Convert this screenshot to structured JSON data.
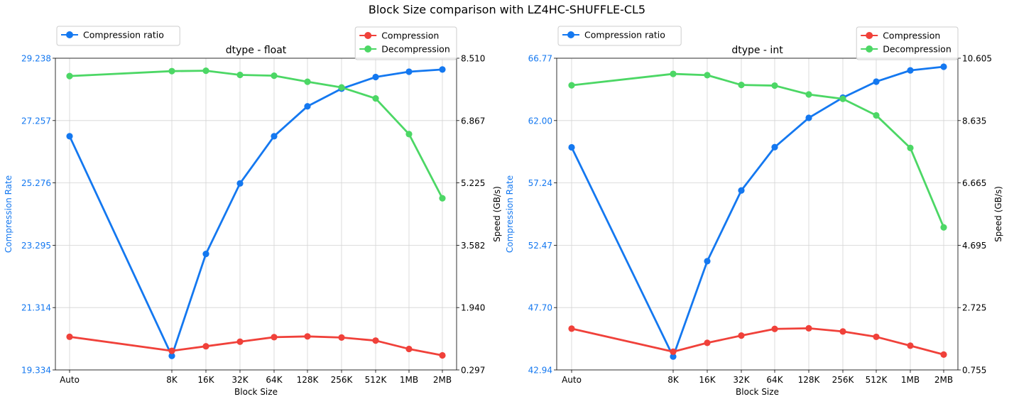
{
  "title": "Block Size comparison with LZ4HC-SHUFFLE-CL5",
  "colors": {
    "ratio": "#1478f0",
    "compression": "#f0413a",
    "decompression": "#4cd765",
    "ratio_axis": "#1478f0"
  },
  "chart_data": [
    {
      "type": "line",
      "title": "dtype - float",
      "xlabel": "Block Size",
      "ylabel_left": "Compression Rate",
      "ylabel_right": "Speed (GB/s)",
      "categories": [
        "Auto",
        "8K",
        "16K",
        "32K",
        "64K",
        "128K",
        "256K",
        "512K",
        "1MB",
        "2MB"
      ],
      "left_ticks": [
        "19.334",
        "21.314",
        "23.295",
        "25.276",
        "27.257",
        "29.238"
      ],
      "right_ticks": [
        "0.297",
        "1.940",
        "3.582",
        "5.225",
        "6.867",
        "8.510"
      ],
      "ylim_left": [
        19.334,
        29.238
      ],
      "ylim_right": [
        0.297,
        8.51
      ],
      "grid": true,
      "legend_left": [
        "Compression ratio"
      ],
      "legend_right": [
        "Compression",
        "Decompression"
      ],
      "series": [
        {
          "name": "Compression ratio",
          "axis": "left",
          "color": "ratio",
          "values": [
            26.76,
            19.78,
            23.02,
            25.26,
            26.76,
            27.71,
            28.27,
            28.64,
            28.81,
            28.88
          ]
        },
        {
          "name": "Compression",
          "axis": "right",
          "color": "compression",
          "values": [
            1.17,
            0.8,
            0.92,
            1.04,
            1.16,
            1.18,
            1.15,
            1.07,
            0.85,
            0.68
          ]
        },
        {
          "name": "Decompression",
          "axis": "right",
          "color": "decompression",
          "values": [
            8.04,
            8.17,
            8.18,
            8.07,
            8.05,
            7.89,
            7.74,
            7.45,
            6.51,
            4.82
          ]
        }
      ]
    },
    {
      "type": "line",
      "title": "dtype - int",
      "xlabel": "Block Size",
      "ylabel_left": "Compression Rate",
      "ylabel_right": "Speed (GB/s)",
      "categories": [
        "Auto",
        "8K",
        "16K",
        "32K",
        "64K",
        "128K",
        "256K",
        "512K",
        "1MB",
        "2MB"
      ],
      "left_ticks": [
        "42.94",
        "47.70",
        "52.47",
        "57.24",
        "62.00",
        "66.77"
      ],
      "right_ticks": [
        "0.755",
        "2.725",
        "4.695",
        "6.665",
        "8.635",
        "10.605"
      ],
      "ylim_left": [
        42.94,
        66.77
      ],
      "ylim_right": [
        0.755,
        10.605
      ],
      "grid": true,
      "legend_left": [
        "Compression ratio"
      ],
      "legend_right": [
        "Compression",
        "Decompression"
      ],
      "series": [
        {
          "name": "Compression ratio",
          "axis": "left",
          "color": "ratio",
          "values": [
            59.96,
            43.96,
            51.25,
            56.66,
            59.97,
            62.21,
            63.76,
            64.98,
            65.84,
            66.12
          ]
        },
        {
          "name": "Compression",
          "axis": "right",
          "color": "compression",
          "values": [
            2.06,
            1.33,
            1.61,
            1.84,
            2.05,
            2.07,
            1.97,
            1.8,
            1.52,
            1.24
          ]
        },
        {
          "name": "Decompression",
          "axis": "right",
          "color": "decompression",
          "values": [
            9.75,
            10.11,
            10.07,
            9.76,
            9.74,
            9.46,
            9.32,
            8.8,
            7.77,
            5.26
          ]
        }
      ]
    }
  ]
}
